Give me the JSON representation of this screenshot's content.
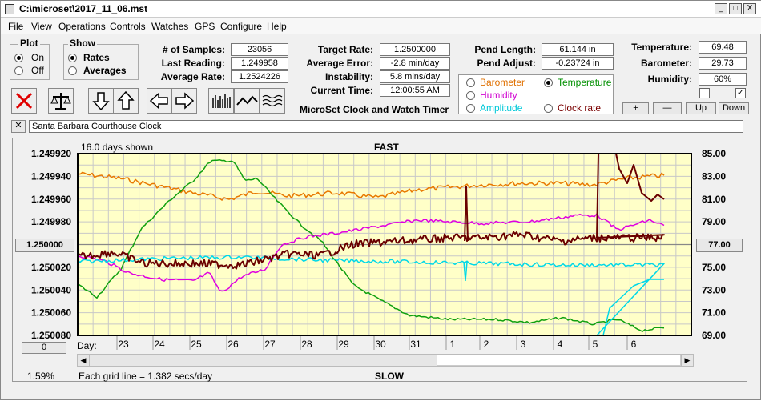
{
  "window": {
    "title": "C:\\microset\\2017_11_06.mst",
    "minimize": "_",
    "maximize": "□",
    "close": "X"
  },
  "menu": [
    "File",
    "View",
    "Operations",
    "Controls",
    "Watches",
    "GPS",
    "Configure",
    "Help"
  ],
  "plot_group": {
    "title": "Plot",
    "options": [
      "On",
      "Off"
    ],
    "selected": "On"
  },
  "show_group": {
    "title": "Show",
    "options": [
      "Rates",
      "Averages"
    ],
    "selected": "Rates"
  },
  "stats_left": [
    {
      "label": "# of Samples:",
      "value": "23056"
    },
    {
      "label": "Last Reading:",
      "value": "1.249958"
    },
    {
      "label": "Average Rate:",
      "value": "1.2524226"
    }
  ],
  "stats_mid": [
    {
      "label": "Target Rate:",
      "value": "1.2500000"
    },
    {
      "label": "Average Error:",
      "value": "-2.8 min/day"
    },
    {
      "label": "Instability:",
      "value": "5.8 mins/day"
    },
    {
      "label": "Current Time:",
      "value": "12:00:55 AM"
    }
  ],
  "app_caption": "MicroSet Clock and Watch Timer",
  "pend": [
    {
      "label": "Pend Length:",
      "value": "61.144 in"
    },
    {
      "label": "Pend Adjust:",
      "value": "-0.23724 in"
    }
  ],
  "env": [
    {
      "label": "Temperature:",
      "value": "69.48"
    },
    {
      "label": "Barometer:",
      "value": "29.73"
    },
    {
      "label": "Humidity:",
      "value": "60%"
    }
  ],
  "checkboxes": [
    {
      "checked": false
    },
    {
      "checked": true,
      "mark": "✓"
    }
  ],
  "scale_buttons": [
    "+",
    "—",
    "Up",
    "Down"
  ],
  "legend": {
    "items": [
      {
        "label": "Barometer",
        "color": "#e07000",
        "selected": false
      },
      {
        "label": "Temperature",
        "color": "#009000",
        "selected": true
      },
      {
        "label": "Humidity",
        "color": "#d000d0",
        "selected": false
      },
      {
        "label": "Clock rate",
        "color": "#7a0000",
        "selected": false
      },
      {
        "label": "Amplitude",
        "color": "#00c8d8",
        "selected": false
      }
    ]
  },
  "watch_name": "Santa Barbara Courthouse Clock",
  "watch_close": "✕",
  "chart_header": {
    "days_shown": "16.0 days shown",
    "fast": "FAST",
    "slow": "SLOW"
  },
  "chart_footer": {
    "grid_note": "Each grid line = 1.382 secs/day",
    "percent": "1.59%",
    "day_label": "Day:",
    "left_center_btn": "1.250000",
    "right_center_btn": "77.00",
    "zero_btn": "0"
  },
  "chart_data": {
    "type": "line",
    "x_ticks": [
      "23",
      "24",
      "25",
      "26",
      "27",
      "28",
      "29",
      "30",
      "31",
      "1",
      "2",
      "3",
      "4",
      "5",
      "6"
    ],
    "y_left_ticks": [
      "1.249920",
      "1.249940",
      "1.249960",
      "1.249980",
      "1.250000",
      "1.250020",
      "1.250040",
      "1.250060",
      "1.250080"
    ],
    "y_right_ticks": [
      "85.00",
      "83.00",
      "81.00",
      "79.00",
      "77.00",
      "75.00",
      "73.00",
      "71.00",
      "69.00"
    ],
    "grid": true,
    "background": "#ffffc8",
    "series": [
      {
        "name": "Barometer",
        "color": "#e87800"
      },
      {
        "name": "Temperature",
        "color": "#10a010"
      },
      {
        "name": "Humidity",
        "color": "#e000e0"
      },
      {
        "name": "Amplitude",
        "color": "#00d8e8"
      },
      {
        "name": "Clock rate",
        "color": "#6a0000"
      }
    ]
  }
}
